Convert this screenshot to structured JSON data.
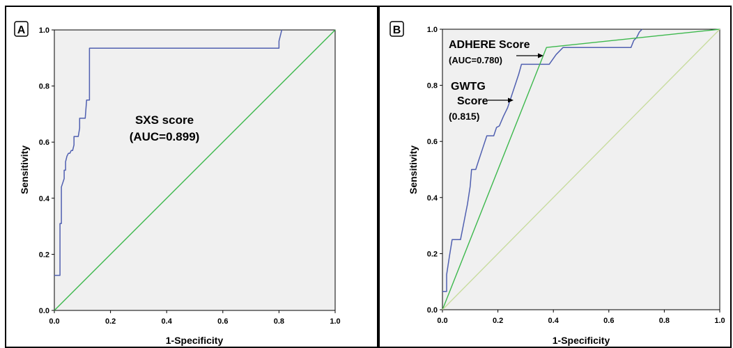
{
  "chart_data": [
    {
      "panel_label": "A",
      "type": "line",
      "xlabel": "1-Specificity",
      "ylabel": "Sensitivity",
      "xlim": [
        0,
        1
      ],
      "ylim": [
        0,
        1
      ],
      "xticks": [
        "0.0",
        "0.2",
        "0.4",
        "0.6",
        "0.8",
        "1.0"
      ],
      "yticks": [
        "0.0",
        "0.2",
        "0.4",
        "0.6",
        "0.8",
        "1.0"
      ],
      "grid": false,
      "annotations": [
        {
          "lines": [
            "SXS score",
            "(AUC=0.899)"
          ]
        }
      ],
      "series": [
        {
          "color": "#4f5fb0",
          "x": [
            0,
            0.02,
            0.02,
            0.025,
            0.025,
            0.035,
            0.035,
            0.04,
            0.04,
            0.045,
            0.05,
            0.055,
            0.06,
            0.065,
            0.07,
            0.07,
            0.075,
            0.08,
            0.085,
            0.09,
            0.09,
            0.095,
            0.1,
            0.1,
            0.105,
            0.11,
            0.115,
            0.12,
            0.12,
            0.125,
            0.125,
            0.8,
            0.8,
            0.81
          ],
          "y": [
            0.125,
            0.125,
            0.31,
            0.31,
            0.44,
            0.47,
            0.5,
            0.5,
            0.53,
            0.55,
            0.56,
            0.56,
            0.57,
            0.57,
            0.59,
            0.62,
            0.62,
            0.62,
            0.62,
            0.65,
            0.685,
            0.685,
            0.685,
            0.685,
            0.685,
            0.685,
            0.75,
            0.75,
            0.75,
            0.75,
            0.935,
            0.935,
            0.96,
            1.0
          ]
        },
        {
          "color": "#3cb84c",
          "x": [
            0,
            1
          ],
          "y": [
            0,
            1
          ]
        }
      ]
    },
    {
      "panel_label": "B",
      "type": "line",
      "xlabel": "1-Specificity",
      "ylabel": "Sensitivity",
      "xlim": [
        0,
        1
      ],
      "ylim": [
        0,
        1
      ],
      "xticks": [
        "0.0",
        "0.2",
        "0.4",
        "0.6",
        "0.8",
        "1.0"
      ],
      "yticks": [
        "0.0",
        "0.2",
        "0.4",
        "0.6",
        "0.8",
        "1.0"
      ],
      "grid": false,
      "annotations": [
        {
          "lines": [
            "ADHERE Score",
            "(AUC=0.780)"
          ]
        },
        {
          "lines": [
            "GWTG",
            "Score",
            "(0.815)"
          ]
        }
      ],
      "series": [
        {
          "color": "#4f5fb0",
          "x": [
            0,
            0.005,
            0.015,
            0.015,
            0.025,
            0.035,
            0.05,
            0.06,
            0.065,
            0.075,
            0.085,
            0.09,
            0.1,
            0.105,
            0.12,
            0.13,
            0.14,
            0.15,
            0.16,
            0.17,
            0.185,
            0.195,
            0.205,
            0.22,
            0.235,
            0.245,
            0.255,
            0.265,
            0.275,
            0.285,
            0.3,
            0.315,
            0.33,
            0.345,
            0.355,
            0.365,
            0.385,
            0.41,
            0.435,
            0.455,
            0.47,
            0.68,
            0.69,
            0.7,
            0.71,
            0.72
          ],
          "y": [
            0.065,
            0.065,
            0.065,
            0.125,
            0.19,
            0.25,
            0.25,
            0.25,
            0.25,
            0.3,
            0.35,
            0.375,
            0.44,
            0.5,
            0.5,
            0.53,
            0.56,
            0.59,
            0.62,
            0.62,
            0.62,
            0.65,
            0.655,
            0.69,
            0.72,
            0.75,
            0.78,
            0.81,
            0.84,
            0.875,
            0.875,
            0.875,
            0.875,
            0.875,
            0.875,
            0.875,
            0.875,
            0.91,
            0.935,
            0.935,
            0.935,
            0.935,
            0.96,
            0.97,
            0.99,
            1.0
          ]
        },
        {
          "color": "#3cb84c",
          "x": [
            0,
            0.375,
            1.0
          ],
          "y": [
            0,
            0.935,
            1.0
          ]
        },
        {
          "color": "#c8dc9e",
          "x": [
            0,
            1
          ],
          "y": [
            0,
            1
          ]
        }
      ]
    }
  ]
}
